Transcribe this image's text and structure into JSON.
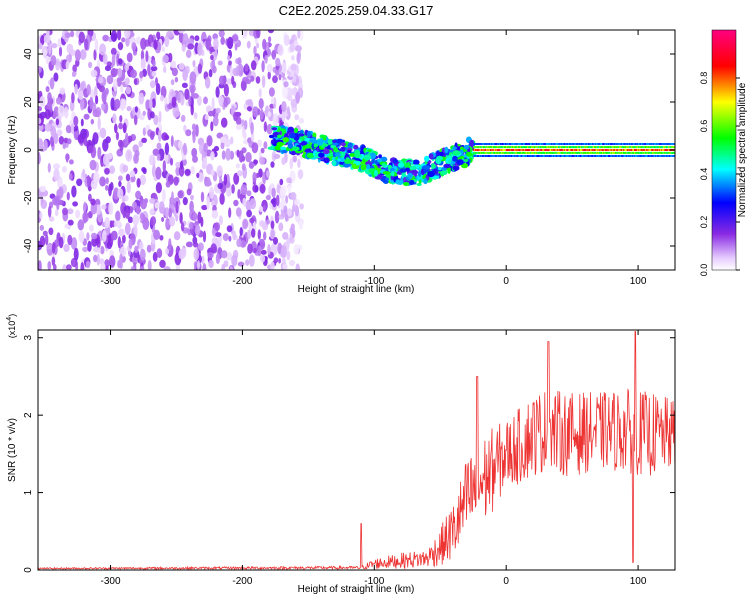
{
  "title": "C2E2.2025.259.04.33.G17",
  "chart_data": [
    {
      "type": "heatmap",
      "xlabel": "Height of straight line (km)",
      "ylabel": "Frequency (Hz)",
      "xlim": [
        -355,
        128
      ],
      "ylim": [
        -50,
        50
      ],
      "xticks": [
        -300,
        -200,
        -100,
        0,
        100
      ],
      "yticks": [
        -40,
        -20,
        0,
        20,
        40
      ],
      "grid": false,
      "colorbar": {
        "label": "Normalized spectral amplitude",
        "range": [
          0,
          1
        ],
        "ticks": [
          0.0,
          0.2,
          0.4,
          0.6,
          0.8
        ]
      },
      "regions": [
        {
          "name": "noise",
          "x": [
            -355,
            -155
          ],
          "freq": [
            -50,
            50
          ],
          "amplitude": 0.15
        },
        {
          "name": "signal",
          "x": [
            -178,
            -25
          ],
          "freq_center": [
            5,
            3,
            0,
            -3,
            -8,
            -10,
            -5,
            0
          ],
          "amplitude": 0.45
        },
        {
          "name": "carrier",
          "x": [
            -25,
            128
          ],
          "freq_center": 0,
          "amplitude": 0.85
        }
      ]
    },
    {
      "type": "line",
      "xlabel": "Height of straight line (km)",
      "ylabel": "SNR (10 * v/v)",
      "yscale_label": "(x10",
      "yscale_exp": "4",
      "xlim": [
        -355,
        128
      ],
      "ylim": [
        0,
        3.1
      ],
      "xticks": [
        -300,
        -200,
        -100,
        0,
        100
      ],
      "yticks": [
        0,
        1,
        2,
        3
      ],
      "grid": false,
      "color": "#ee3333",
      "series_envelope": {
        "x": [
          -355,
          -110,
          -100,
          -80,
          -60,
          -50,
          -40,
          -30,
          -20,
          -10,
          0,
          10,
          20,
          30,
          50,
          70,
          90,
          110,
          128
        ],
        "mean": [
          0.02,
          0.03,
          0.08,
          0.12,
          0.15,
          0.3,
          0.5,
          0.9,
          1.1,
          1.3,
          1.5,
          1.6,
          1.75,
          1.8,
          1.75,
          1.8,
          1.8,
          1.75,
          1.75
        ],
        "spread": [
          0.01,
          0.02,
          0.07,
          0.1,
          0.12,
          0.25,
          0.4,
          0.55,
          0.6,
          0.55,
          0.45,
          0.5,
          0.55,
          0.55,
          0.55,
          0.5,
          0.55,
          0.55,
          0.45
        ]
      },
      "peaks": [
        {
          "x": 32,
          "y": 2.95
        },
        {
          "x": 98,
          "y": 3.08
        },
        {
          "x": 96,
          "y": 0.1
        },
        {
          "x": -22,
          "y": 2.5
        },
        {
          "x": -110,
          "y": 0.6
        }
      ]
    }
  ]
}
